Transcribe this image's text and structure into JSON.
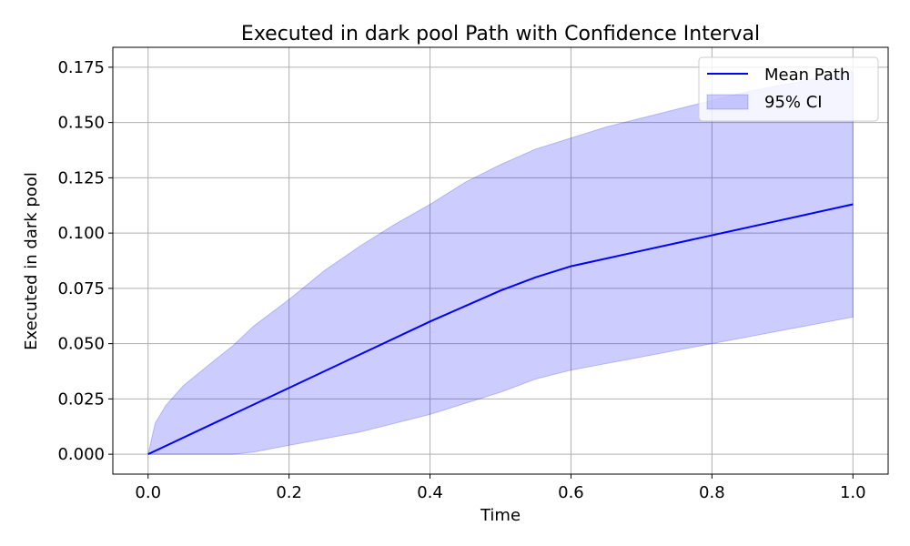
{
  "chart_data": {
    "type": "line",
    "title": "Executed in dark pool Path with Confidence Interval",
    "xlabel": "Time",
    "ylabel": "Executed in dark pool",
    "xlim": [
      -0.05,
      1.05
    ],
    "ylim": [
      -0.009,
      0.184
    ],
    "x_ticks": [
      "0.0",
      "0.2",
      "0.4",
      "0.6",
      "0.8",
      "1.0"
    ],
    "y_ticks": [
      "0.000",
      "0.025",
      "0.050",
      "0.075",
      "0.100",
      "0.125",
      "0.150",
      "0.175"
    ],
    "grid": true,
    "legend_position": "top-right",
    "series": [
      {
        "name": "Mean Path",
        "kind": "line",
        "color": "#0000ff",
        "x": [
          0.0,
          0.1,
          0.2,
          0.3,
          0.4,
          0.45,
          0.5,
          0.55,
          0.6,
          0.7,
          0.8,
          0.9,
          1.0
        ],
        "y": [
          0.0,
          0.015,
          0.03,
          0.045,
          0.06,
          0.067,
          0.074,
          0.08,
          0.085,
          0.092,
          0.099,
          0.106,
          0.113
        ]
      },
      {
        "name": "95% CI",
        "kind": "band",
        "color": "#0000ff",
        "opacity": 0.2,
        "x": [
          0.0,
          0.01,
          0.025,
          0.05,
          0.1,
          0.12,
          0.15,
          0.2,
          0.25,
          0.3,
          0.35,
          0.4,
          0.45,
          0.5,
          0.55,
          0.6,
          0.65,
          0.7,
          0.75,
          0.8,
          0.85,
          0.9,
          0.95,
          1.0
        ],
        "lower": [
          0.0,
          0.0,
          0.0,
          0.0,
          0.0,
          0.0,
          0.001,
          0.004,
          0.007,
          0.01,
          0.014,
          0.018,
          0.023,
          0.028,
          0.034,
          0.038,
          0.041,
          0.044,
          0.047,
          0.05,
          0.053,
          0.056,
          0.059,
          0.062
        ],
        "upper": [
          0.0,
          0.014,
          0.022,
          0.031,
          0.044,
          0.049,
          0.058,
          0.07,
          0.083,
          0.094,
          0.104,
          0.113,
          0.123,
          0.131,
          0.138,
          0.143,
          0.148,
          0.152,
          0.156,
          0.16,
          0.164,
          0.167,
          0.17,
          0.173
        ]
      }
    ],
    "legend": {
      "items": [
        {
          "label": "Mean Path",
          "kind": "line",
          "color": "#0000ff"
        },
        {
          "label": "95% CI",
          "kind": "band",
          "color": "#0000ff"
        }
      ]
    }
  }
}
